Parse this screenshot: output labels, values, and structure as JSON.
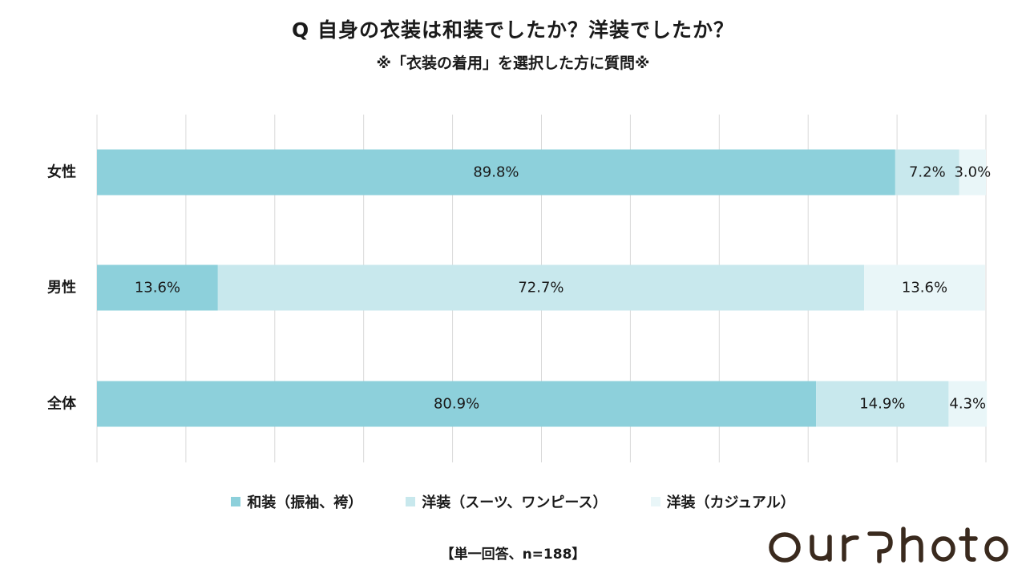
{
  "header": {
    "title": "Q 自身の衣装は和装でしたか？洋装でしたか？",
    "subtitle": "※「衣装の着用」を選択した方に質問※"
  },
  "chart_data": {
    "type": "bar",
    "orientation": "horizontal",
    "stacked": true,
    "percent": true,
    "categories": [
      "女性",
      "男性",
      "全体"
    ],
    "series": [
      {
        "name": "和装（振袖、袴）",
        "values": [
          89.8,
          13.6,
          80.9
        ],
        "labels": [
          "89.8%",
          "13.6%",
          "80.9%"
        ],
        "color": "#8dd0db"
      },
      {
        "name": "洋装（スーツ、ワンピース）",
        "values": [
          7.2,
          72.7,
          14.9
        ],
        "labels": [
          "7.2%",
          "72.7%",
          "14.9%"
        ],
        "color": "#c8e8ed"
      },
      {
        "name": "洋装（カジュアル）",
        "values": [
          3.0,
          13.6,
          4.3
        ],
        "labels": [
          "3.0%",
          "13.6%",
          "4.3%"
        ],
        "color": "#e9f6f8"
      }
    ],
    "xlim": [
      0,
      100
    ],
    "grid": true,
    "legend": "bottom"
  },
  "footer": {
    "note": "【単一回答、n=188】",
    "brand": "OurPhoto"
  },
  "colors": {
    "gridline": "#d9d9d9",
    "text": "#1a1a1a",
    "logo": "#3a2a1e"
  }
}
